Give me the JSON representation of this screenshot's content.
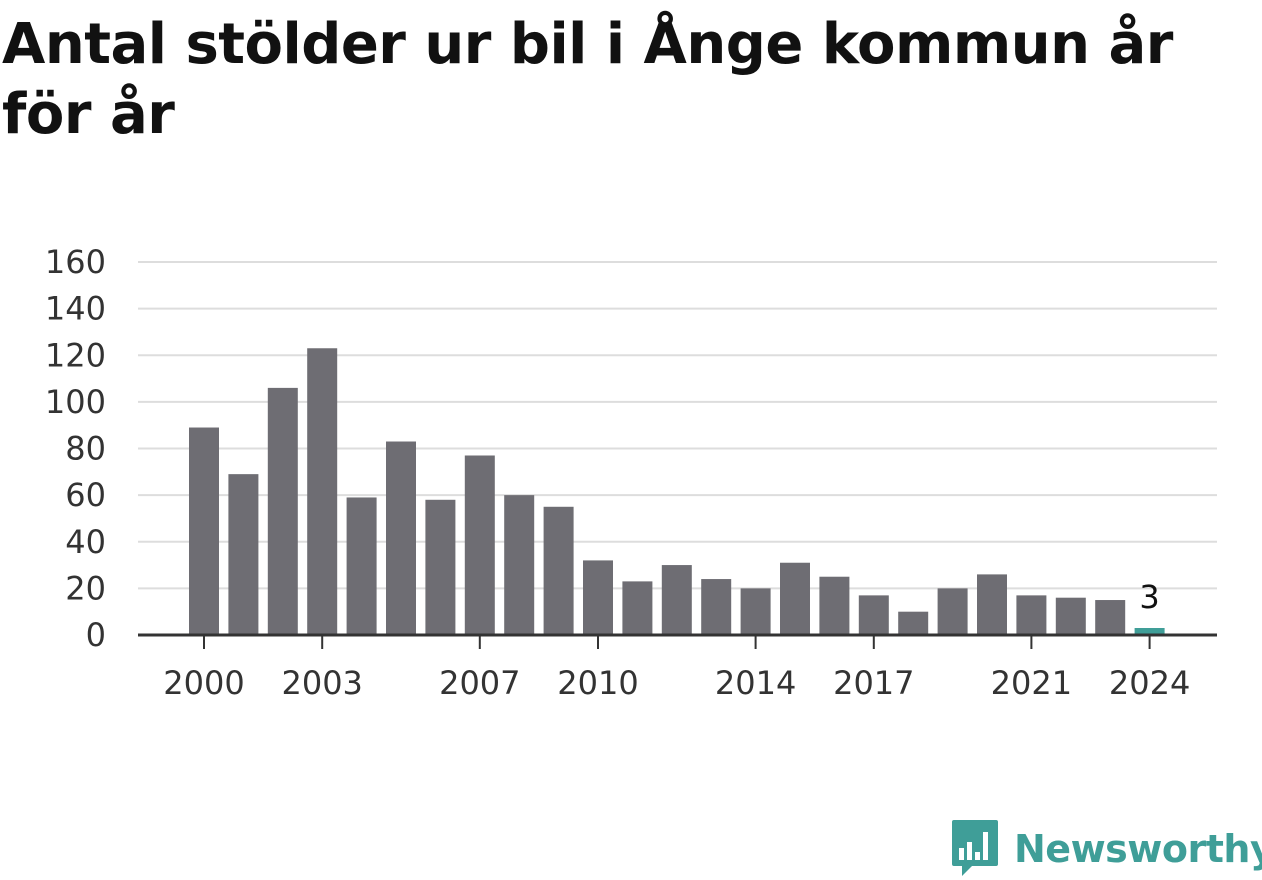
{
  "title": "Antal stölder ur bil i Ånge kommun år för år",
  "brand": {
    "name": "Newsworthy",
    "logo_icon": "newsworthy-logo-icon",
    "color": "#3f9e98"
  },
  "chart_data": {
    "type": "bar",
    "title": "Antal stölder ur bil i Ånge kommun år för år",
    "xlabel": "",
    "ylabel": "",
    "categories": [
      "2000",
      "2001",
      "2002",
      "2003",
      "2004",
      "2005",
      "2006",
      "2007",
      "2008",
      "2009",
      "2010",
      "2011",
      "2012",
      "2013",
      "2014",
      "2015",
      "2016",
      "2017",
      "2018",
      "2019",
      "2020",
      "2021",
      "2022",
      "2023",
      "2024"
    ],
    "values": [
      89,
      69,
      106,
      123,
      59,
      83,
      58,
      77,
      60,
      55,
      32,
      23,
      30,
      24,
      20,
      31,
      25,
      17,
      10,
      20,
      26,
      17,
      16,
      15,
      3
    ],
    "x_tick_labels": [
      "2000",
      "2003",
      "2007",
      "2010",
      "2014",
      "2017",
      "2021",
      "2024"
    ],
    "y_ticks": [
      0,
      20,
      40,
      60,
      80,
      100,
      120,
      140,
      160
    ],
    "ylim": [
      0,
      160
    ],
    "grid": true,
    "legend": "none",
    "bar_color": "#6e6d73",
    "highlight_color": "#3f9e98",
    "highlight_category": "2024",
    "data_labels": [
      {
        "category": "2024",
        "text": "3"
      }
    ]
  }
}
